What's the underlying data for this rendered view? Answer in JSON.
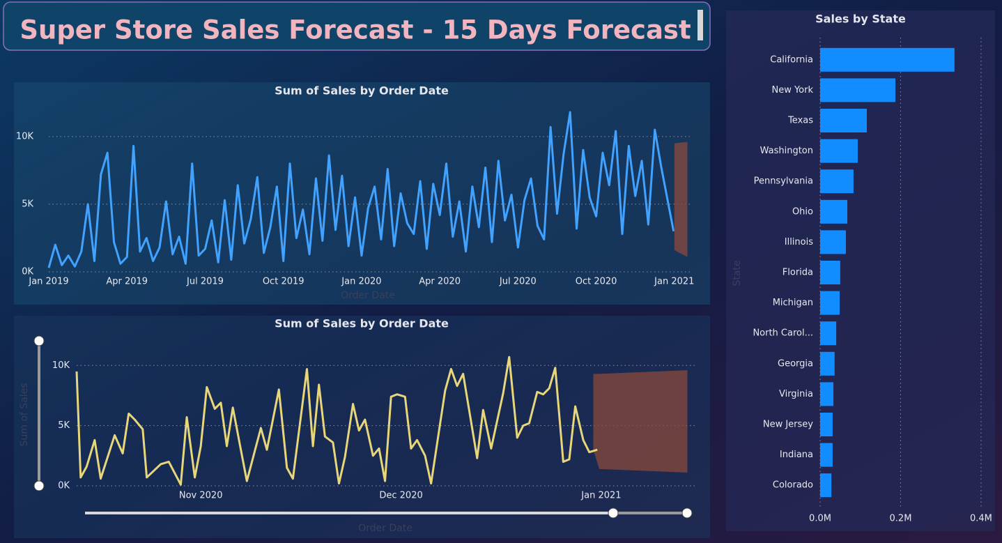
{
  "header": {
    "title": "Super Store Sales Forecast - 15 Days Forecast"
  },
  "chart_data": [
    {
      "type": "line",
      "title": "Sum of Sales by Order Date",
      "x_label": "Order Date",
      "color": "#41a2ff",
      "x": [
        0,
        0.25,
        0.5,
        0.75,
        1,
        1.25,
        1.5,
        1.75,
        2,
        2.25,
        2.5,
        2.75,
        3,
        3.25,
        3.5,
        3.75,
        4,
        4.25,
        4.5,
        4.75,
        5,
        5.25,
        5.5,
        5.75,
        6,
        6.25,
        6.5,
        6.75,
        7,
        7.25,
        7.5,
        7.75,
        8,
        8.25,
        8.5,
        8.75,
        9,
        9.25,
        9.5,
        9.75,
        10,
        10.25,
        10.5,
        10.75,
        11,
        11.25,
        11.5,
        11.75,
        12,
        12.25,
        12.5,
        12.75,
        13,
        13.25,
        13.5,
        13.75,
        14,
        14.25,
        14.5,
        14.75,
        15,
        15.25,
        15.5,
        15.75,
        16,
        16.25,
        16.5,
        16.75,
        17,
        17.25,
        17.5,
        17.75,
        18,
        18.25,
        18.5,
        18.75,
        19,
        19.25,
        19.5,
        19.75,
        20,
        20.25,
        20.5,
        20.75,
        21,
        21.25,
        21.5,
        21.75,
        22,
        22.25,
        22.5,
        22.75,
        23,
        23.25,
        23.5,
        23.97
      ],
      "values": [
        300,
        2000,
        500,
        1200,
        400,
        1500,
        5000,
        800,
        7200,
        8800,
        2200,
        600,
        1100,
        9300,
        1500,
        2500,
        800,
        1800,
        5200,
        1300,
        2600,
        600,
        8000,
        1200,
        1700,
        3800,
        700,
        5300,
        900,
        6400,
        2100,
        3900,
        7000,
        1400,
        3300,
        6300,
        800,
        8000,
        2500,
        4600,
        1300,
        6900,
        2300,
        8600,
        3100,
        7100,
        1900,
        5500,
        1200,
        4700,
        6300,
        2400,
        7600,
        1900,
        5800,
        3600,
        2800,
        6700,
        1700,
        6500,
        4200,
        8000,
        2600,
        5200,
        1500,
        6300,
        3300,
        7700,
        2200,
        8200,
        3800,
        5700,
        1800,
        5300,
        6900,
        3400,
        2400,
        10700,
        4300,
        8700,
        11800,
        3200,
        9000,
        5500,
        4100,
        8800,
        6400,
        10400,
        2800,
        9300,
        5600,
        8200,
        3500,
        10500,
        7700,
        3000
      ],
      "forecast": {
        "x": [
          24,
          24.5
        ],
        "upper": [
          9500,
          9600
        ],
        "lower": [
          1600,
          1100
        ],
        "color": "#8a4a3c"
      },
      "xlim": [
        0,
        24.7
      ],
      "xticks": [
        {
          "value": 0,
          "label": "Jan 2019"
        },
        {
          "value": 3,
          "label": "Apr 2019"
        },
        {
          "value": 6,
          "label": "Jul 2019"
        },
        {
          "value": 9,
          "label": "Oct 2019"
        },
        {
          "value": 12,
          "label": "Jan 2020"
        },
        {
          "value": 15,
          "label": "Apr 2020"
        },
        {
          "value": 18,
          "label": "Jul 2020"
        },
        {
          "value": 21,
          "label": "Oct 2020"
        },
        {
          "value": 24,
          "label": "Jan 2021"
        }
      ],
      "ylim": [
        0,
        12000
      ],
      "yticks": [
        {
          "value": 0,
          "label": "0K"
        },
        {
          "value": 5000,
          "label": "5K"
        },
        {
          "value": 10000,
          "label": "10K"
        }
      ],
      "grid": true
    },
    {
      "type": "line",
      "title": "Sum of Sales by Order Date",
      "x_label": "Order Date",
      "y_label": "Sum of Sales",
      "color": "#e8d77a",
      "x": [
        21.38,
        21.4,
        21.43,
        21.47,
        21.5,
        21.57,
        21.61,
        21.64,
        21.67,
        21.71,
        21.73,
        21.8,
        21.84,
        21.9,
        21.93,
        21.97,
        22,
        22.03,
        22.07,
        22.1,
        22.13,
        22.16,
        22.2,
        22.23,
        22.3,
        22.33,
        22.39,
        22.43,
        22.46,
        22.53,
        22.56,
        22.59,
        22.62,
        22.66,
        22.69,
        22.72,
        22.76,
        22.79,
        22.82,
        22.86,
        22.89,
        22.92,
        22.95,
        22.98,
        23.02,
        23.05,
        23.08,
        23.12,
        23.15,
        23.22,
        23.25,
        23.28,
        23.31,
        23.38,
        23.41,
        23.45,
        23.51,
        23.54,
        23.58,
        23.61,
        23.64,
        23.68,
        23.71,
        23.74,
        23.77,
        23.81,
        23.84,
        23.87,
        23.91,
        23.94,
        23.98
      ],
      "values": [
        9500,
        700,
        1600,
        3800,
        600,
        4200,
        2700,
        6000,
        5500,
        4700,
        700,
        1800,
        2000,
        100,
        5700,
        700,
        3300,
        8200,
        6400,
        6900,
        3300,
        6500,
        3000,
        400,
        4800,
        3000,
        8000,
        1500,
        600,
        9700,
        3300,
        8400,
        4100,
        3600,
        200,
        2400,
        6800,
        4600,
        5500,
        2500,
        3100,
        400,
        7400,
        7600,
        7400,
        3100,
        3800,
        2500,
        200,
        7900,
        9700,
        8300,
        9300,
        2300,
        6300,
        3100,
        7700,
        10700,
        4000,
        5000,
        5200,
        7800,
        7600,
        8100,
        9800,
        2000,
        2200,
        6600,
        3800,
        2800,
        3000
      ],
      "forecast": {
        "x": [
          23.96,
          23.99,
          24.43
        ],
        "upper": [
          9300,
          9300,
          9600
        ],
        "lower": [
          3000,
          1400,
          1100
        ],
        "color": "#8a4a3c"
      },
      "xlim": [
        21.38,
        24.47
      ],
      "xticks": [
        {
          "value": 22,
          "label": "Nov 2020"
        },
        {
          "value": 23,
          "label": "Dec 2020"
        },
        {
          "value": 24,
          "label": "Jan 2021"
        }
      ],
      "ylim": [
        0,
        11000
      ],
      "yticks": [
        {
          "value": 0,
          "label": "0K"
        },
        {
          "value": 5000,
          "label": "5K"
        },
        {
          "value": 10000,
          "label": "10K"
        }
      ],
      "grid": true
    },
    {
      "type": "bar",
      "orientation": "horizontal",
      "title": "Sales by State",
      "y_label": "State",
      "color": "#118dff",
      "categories": [
        "California",
        "New York",
        "Texas",
        "Washington",
        "Pennsylvania",
        "Ohio",
        "Illinois",
        "Florida",
        "Michigan",
        "North Carol...",
        "Georgia",
        "Virginia",
        "New Jersey",
        "Indiana",
        "Colorado"
      ],
      "values": [
        334000,
        187000,
        116000,
        93500,
        83000,
        67500,
        64000,
        50000,
        48500,
        40000,
        36000,
        33000,
        31000,
        31000,
        28000
      ],
      "xlim": [
        0,
        420000
      ],
      "xticks": [
        {
          "value": 0,
          "label": "0.0M"
        },
        {
          "value": 200000,
          "label": "0.2M"
        },
        {
          "value": 400000,
          "label": "0.4M"
        }
      ],
      "grid": true
    }
  ]
}
